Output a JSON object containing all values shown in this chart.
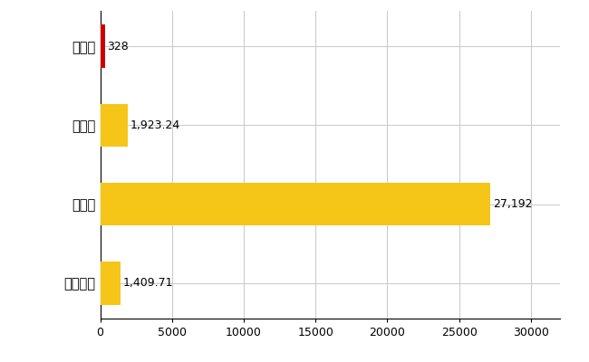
{
  "categories": [
    "芦屋町",
    "県平均",
    "県最大",
    "全国平均"
  ],
  "values": [
    328,
    1923.24,
    27192,
    1409.71
  ],
  "bar_colors": [
    "#cc0000",
    "#f5c518",
    "#f5c518",
    "#f5c518"
  ],
  "value_labels": [
    "328",
    "1,923.24",
    "27,192",
    "1,409.71"
  ],
  "xlim": [
    0,
    32000
  ],
  "xticks": [
    0,
    5000,
    10000,
    15000,
    20000,
    25000,
    30000
  ],
  "xtick_labels": [
    "0",
    "5000",
    "10000",
    "15000",
    "20000",
    "25000",
    "30000"
  ],
  "background_color": "#ffffff",
  "grid_color": "#cccccc",
  "bar_height": 0.55,
  "label_fontsize": 10.5,
  "tick_fontsize": 9,
  "value_fontsize": 9
}
